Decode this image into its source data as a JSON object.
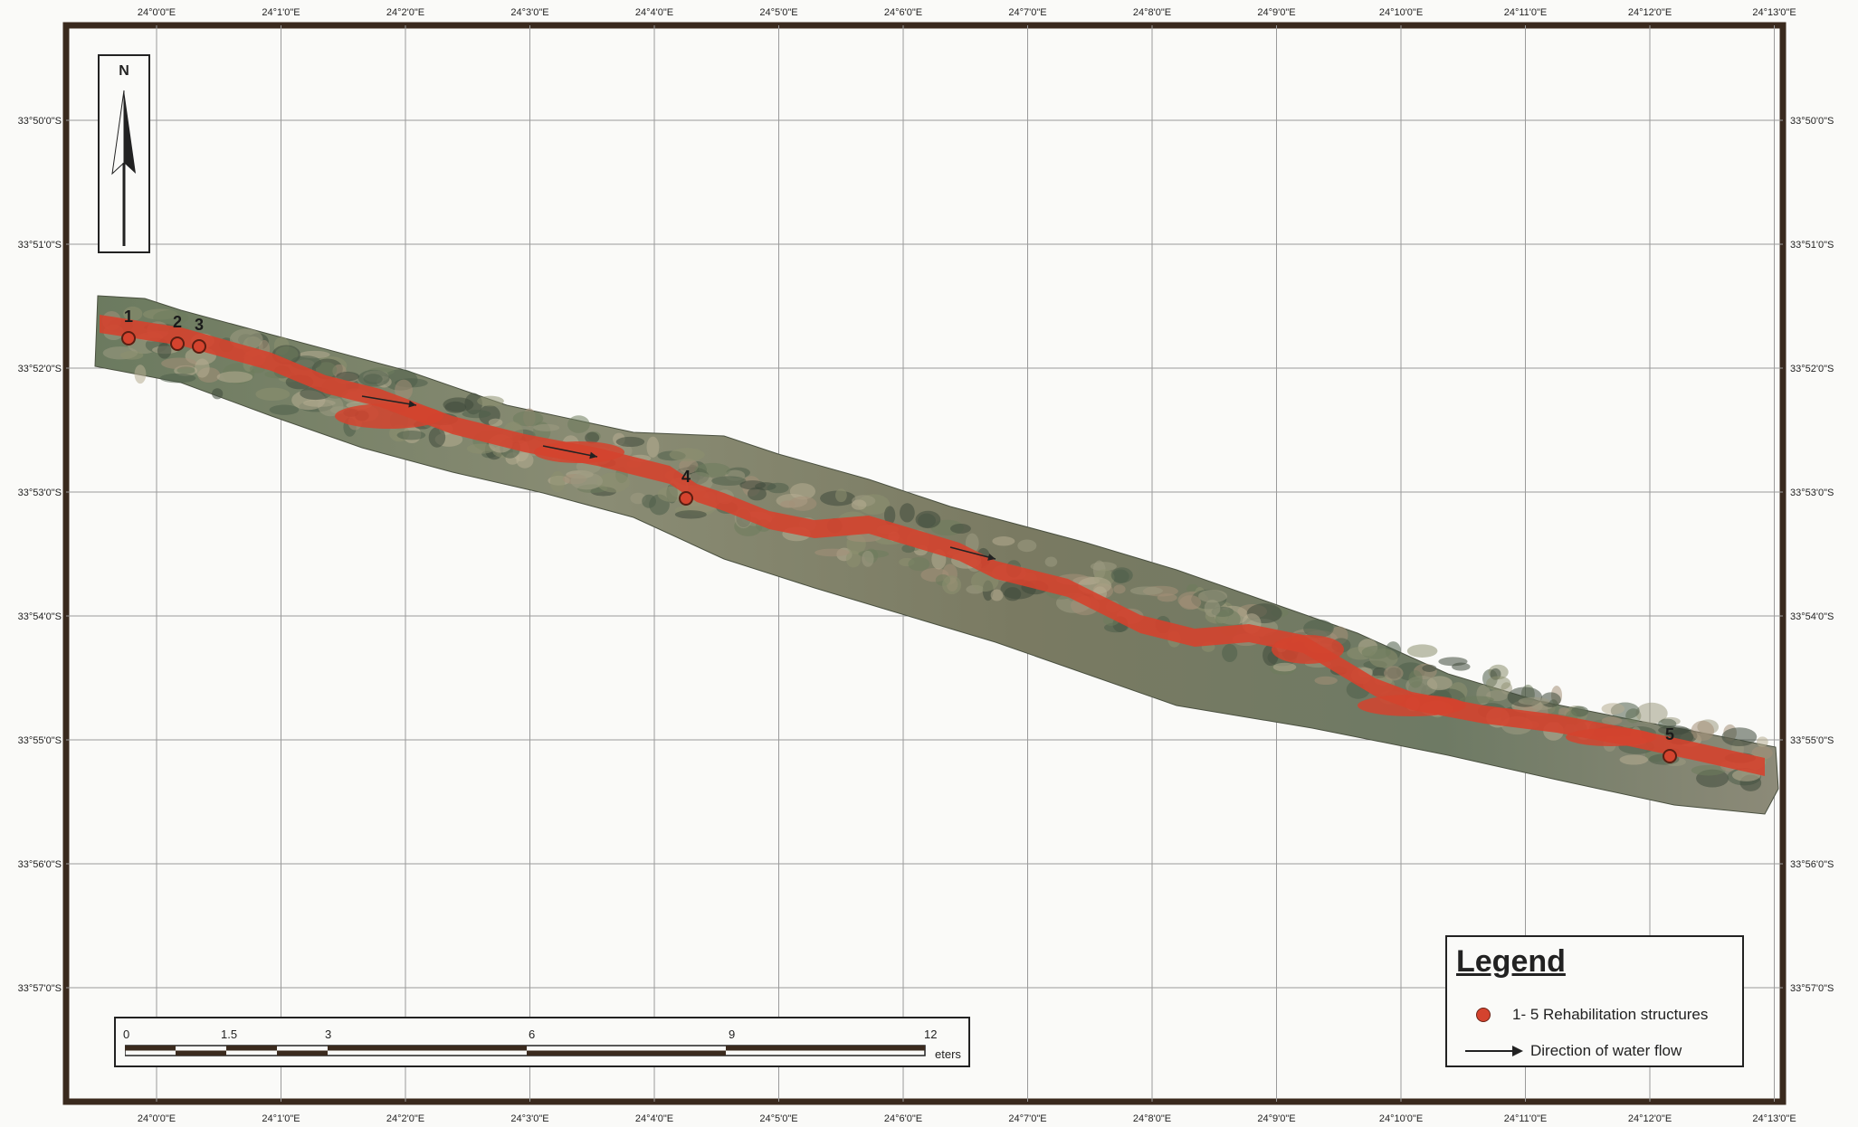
{
  "map": {
    "top_lon_labels": [
      "24°0'0\"E",
      "24°1'0\"E",
      "24°2'0\"E",
      "24°3'0\"E",
      "24°4'0\"E",
      "24°5'0\"E",
      "24°6'0\"E",
      "24°7'0\"E",
      "24°8'0\"E",
      "24°9'0\"E",
      "24°10'0\"E",
      "24°11'0\"E",
      "24°12'0\"E",
      "24°13'0\"E"
    ],
    "bottom_lon_labels": [
      "24°0'0\"E",
      "24°1'0\"E",
      "24°2'0\"E",
      "24°3'0\"E",
      "24°4'0\"E",
      "24°5'0\"E",
      "24°6'0\"E",
      "24°7'0\"E",
      "24°8'0\"E",
      "24°9'0\"E",
      "24°10'0\"E",
      "24°11'0\"E",
      "24°12'0\"E",
      "24°13'0\"E"
    ],
    "lat_labels": [
      "33°50'0\"S",
      "33°51'0\"S",
      "33°52'0\"S",
      "33°53'0\"S",
      "33°54'0\"S",
      "33°55'0\"S",
      "33°56'0\"S",
      "33°57'0\"S"
    ],
    "north_label": "N",
    "structures": [
      "1",
      "2",
      "3",
      "4",
      "5"
    ],
    "colors": {
      "river": "#d4432e",
      "imagery_dark": "#5a6a55",
      "imagery_light": "#b8b49a",
      "frame": "#3a2a1e"
    }
  },
  "scale": {
    "ticks": [
      "0",
      "1.5",
      "3",
      "6",
      "9",
      "12"
    ],
    "unit_fragment": "eters"
  },
  "legend": {
    "title": "Legend",
    "structures_label": "1- 5 Rehabilitation structures",
    "flow_label": "Direction of water flow"
  }
}
